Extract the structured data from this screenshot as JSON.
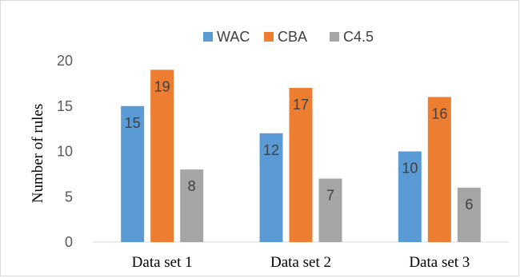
{
  "chart_data": {
    "type": "bar",
    "title": "",
    "xlabel": "",
    "ylabel": "Number of rules",
    "categories": [
      "Data set 1",
      "Data set 2",
      "Data set 3"
    ],
    "series": [
      {
        "name": "WAC",
        "values": [
          15,
          12,
          10
        ],
        "color": "#5b9bd5"
      },
      {
        "name": "CBA",
        "values": [
          19,
          17,
          16
        ],
        "color": "#ed7d31"
      },
      {
        "name": "C4.5",
        "values": [
          8,
          7,
          6
        ],
        "color": "#a5a5a5"
      }
    ],
    "ylim": [
      0,
      20
    ],
    "yticks": [
      "0",
      "5",
      "10",
      "15",
      "20"
    ],
    "grid": false,
    "legend_position": "top"
  }
}
